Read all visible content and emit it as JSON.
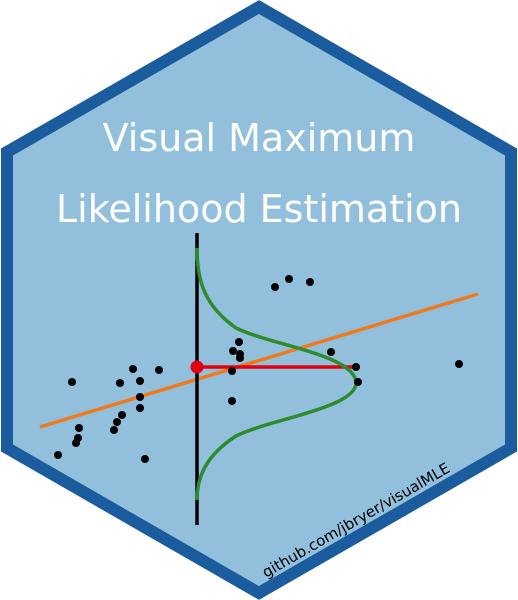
{
  "title": {
    "line1": "Visual Maximum",
    "line2": "Likelihood Estimation"
  },
  "url": "github.com/jbryer/visualMLE",
  "colors": {
    "border": "#1b5c9e",
    "fill": "#92bfdb",
    "regression_line": "#f07a1b",
    "density_curve": "#2e8b2e",
    "residual": "#e3000f",
    "points": "#000000",
    "axis": "#000000"
  },
  "icons": [
    "hexagon-sticker"
  ]
}
